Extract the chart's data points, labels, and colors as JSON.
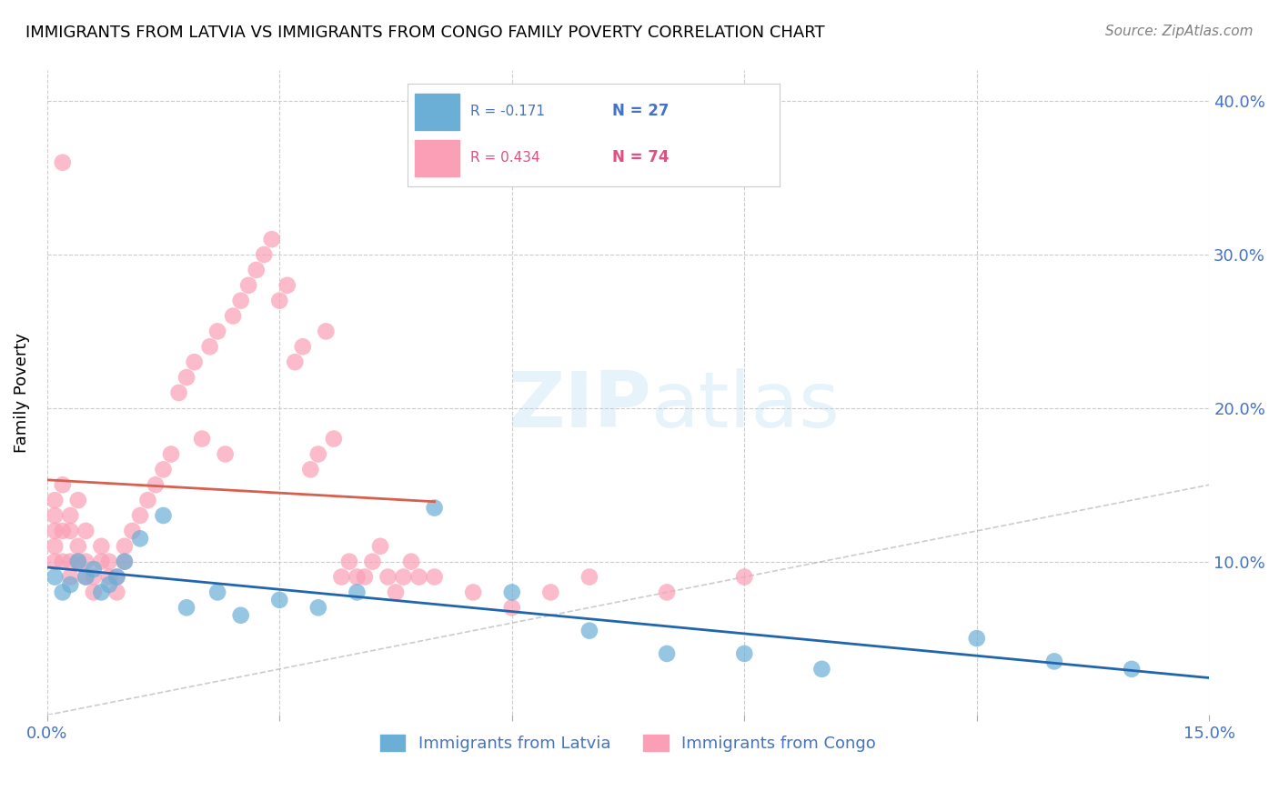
{
  "title": "IMMIGRANTS FROM LATVIA VS IMMIGRANTS FROM CONGO FAMILY POVERTY CORRELATION CHART",
  "source": "Source: ZipAtlas.com",
  "xlabel_bottom": "",
  "ylabel": "Family Poverty",
  "legend_latvia": "Immigrants from Latvia",
  "legend_congo": "Immigrants from Congo",
  "R_latvia": -0.171,
  "N_latvia": 27,
  "R_congo": 0.434,
  "N_congo": 74,
  "xlim": [
    0.0,
    0.15
  ],
  "ylim": [
    0.0,
    0.42
  ],
  "xticks": [
    0.0,
    0.03,
    0.06,
    0.09,
    0.12,
    0.15
  ],
  "xtick_labels": [
    "0.0%",
    "",
    "",
    "",
    "",
    "15.0%"
  ],
  "yticks_right": [
    0.1,
    0.2,
    0.3,
    0.4
  ],
  "ytick_right_labels": [
    "10.0%",
    "20.0%",
    "30.0%",
    "40.0%"
  ],
  "color_latvia": "#6baed6",
  "color_congo": "#fa9fb5",
  "color_line_latvia": "#2166ac",
  "color_line_congo": "#d6604d",
  "color_diag": "#aaaaaa",
  "watermark": "ZIPatlas",
  "latvia_x": [
    0.001,
    0.002,
    0.003,
    0.004,
    0.005,
    0.006,
    0.007,
    0.008,
    0.009,
    0.01,
    0.012,
    0.015,
    0.018,
    0.022,
    0.025,
    0.03,
    0.035,
    0.04,
    0.05,
    0.06,
    0.07,
    0.08,
    0.09,
    0.1,
    0.12,
    0.13,
    0.14
  ],
  "latvia_y": [
    0.09,
    0.08,
    0.085,
    0.1,
    0.09,
    0.095,
    0.08,
    0.085,
    0.09,
    0.1,
    0.115,
    0.13,
    0.07,
    0.08,
    0.065,
    0.075,
    0.07,
    0.08,
    0.135,
    0.08,
    0.055,
    0.04,
    0.04,
    0.03,
    0.05,
    0.035,
    0.03
  ],
  "congo_x": [
    0.001,
    0.001,
    0.001,
    0.001,
    0.001,
    0.002,
    0.002,
    0.002,
    0.002,
    0.003,
    0.003,
    0.003,
    0.003,
    0.004,
    0.004,
    0.004,
    0.005,
    0.005,
    0.005,
    0.006,
    0.006,
    0.007,
    0.007,
    0.008,
    0.008,
    0.009,
    0.009,
    0.01,
    0.01,
    0.011,
    0.012,
    0.013,
    0.014,
    0.015,
    0.016,
    0.017,
    0.018,
    0.019,
    0.02,
    0.021,
    0.022,
    0.023,
    0.024,
    0.025,
    0.026,
    0.027,
    0.028,
    0.029,
    0.03,
    0.031,
    0.032,
    0.033,
    0.034,
    0.035,
    0.036,
    0.037,
    0.038,
    0.039,
    0.04,
    0.041,
    0.042,
    0.043,
    0.044,
    0.045,
    0.046,
    0.047,
    0.048,
    0.05,
    0.055,
    0.06,
    0.065,
    0.07,
    0.08,
    0.09
  ],
  "congo_y": [
    0.1,
    0.11,
    0.12,
    0.13,
    0.14,
    0.1,
    0.12,
    0.15,
    0.36,
    0.09,
    0.1,
    0.12,
    0.13,
    0.1,
    0.11,
    0.14,
    0.09,
    0.1,
    0.12,
    0.08,
    0.09,
    0.1,
    0.11,
    0.09,
    0.1,
    0.08,
    0.09,
    0.1,
    0.11,
    0.12,
    0.13,
    0.14,
    0.15,
    0.16,
    0.17,
    0.21,
    0.22,
    0.23,
    0.18,
    0.24,
    0.25,
    0.17,
    0.26,
    0.27,
    0.28,
    0.29,
    0.3,
    0.31,
    0.27,
    0.28,
    0.23,
    0.24,
    0.16,
    0.17,
    0.25,
    0.18,
    0.09,
    0.1,
    0.09,
    0.09,
    0.1,
    0.11,
    0.09,
    0.08,
    0.09,
    0.1,
    0.09,
    0.09,
    0.08,
    0.07,
    0.08,
    0.09,
    0.08,
    0.09
  ]
}
